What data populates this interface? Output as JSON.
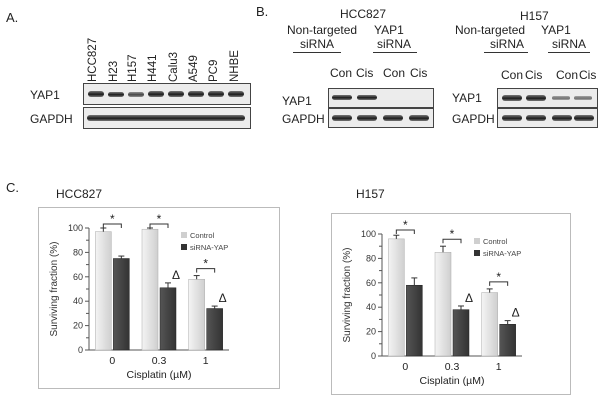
{
  "panel_a": {
    "label": "A.",
    "lanes": [
      "HCC827",
      "H23",
      "H157",
      "H441",
      "Calu3",
      "A549",
      "PC9",
      "NHBE"
    ],
    "rows": [
      "YAP1",
      "GAPDH"
    ]
  },
  "panel_b": {
    "label": "B.",
    "left": {
      "cell_line": "HCC827",
      "group1_line1": "Non-targeted",
      "group1_line2": "siRNA",
      "group2_line1": "YAP1",
      "group2_line2": "siRNA",
      "lanes": [
        "Con",
        "Cis",
        "Con",
        "Cis"
      ],
      "rows": [
        "YAP1",
        "GAPDH"
      ]
    },
    "right": {
      "cell_line": "H157",
      "group1_line1": "Non-targeted",
      "group1_line2": "siRNA",
      "group2_line1": "YAP1",
      "group2_line2": "siRNA",
      "lanes": [
        "Con",
        "Cis",
        "Con",
        "Cis"
      ],
      "rows": [
        "YAP1",
        "GAPDH"
      ]
    }
  },
  "panel_c": {
    "label": "C.",
    "left_title": "HCC827",
    "right_title": "H157",
    "colors": {
      "control": "#cfcfcf",
      "sirna": "#333333"
    }
  },
  "chart_data": [
    {
      "type": "bar",
      "title": "HCC827",
      "categories": [
        "0",
        "0.3",
        "1"
      ],
      "series": [
        {
          "name": "Control",
          "values": [
            97,
            99,
            58
          ],
          "errors": [
            3,
            1,
            3
          ]
        },
        {
          "name": "siRNA-YAP",
          "values": [
            75,
            51,
            34
          ],
          "errors": [
            2,
            4,
            2
          ]
        }
      ],
      "xlabel": "Cisplatin (µM)",
      "ylabel": "Surviving fraction (%)",
      "ylim": [
        0,
        100
      ],
      "yticks": [
        "0",
        "10",
        "20",
        "30",
        "40",
        "50",
        "60",
        "70",
        "80",
        "90",
        "100"
      ],
      "legend": "top-right",
      "significance": "*",
      "delta": "Δ"
    },
    {
      "type": "bar",
      "title": "H157",
      "categories": [
        "0",
        "0.3",
        "1"
      ],
      "series": [
        {
          "name": "Control",
          "values": [
            96,
            85,
            52
          ],
          "errors": [
            3,
            5,
            3
          ]
        },
        {
          "name": "siRNA-YAP",
          "values": [
            58,
            38,
            26
          ],
          "errors": [
            6,
            3,
            3
          ]
        }
      ],
      "xlabel": "Cisplatin (µM)",
      "ylabel": "Surviving fraction (%)",
      "ylim": [
        0,
        100
      ],
      "yticks": [
        "0",
        "10",
        "20",
        "30",
        "40",
        "50",
        "60",
        "70",
        "80",
        "90",
        "100"
      ],
      "legend": "top-right",
      "significance": "*",
      "delta": "Δ"
    }
  ]
}
